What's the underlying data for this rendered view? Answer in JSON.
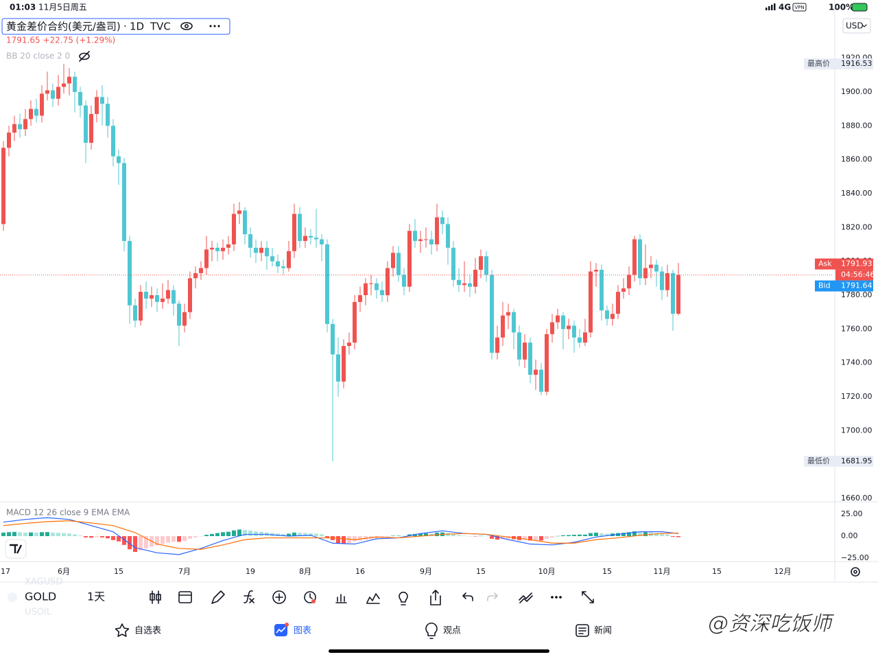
{
  "status_bar": {
    "time": "01:03",
    "date": "11月5日周五",
    "network": "4G",
    "vpn": "VPN",
    "battery": "100%"
  },
  "header": {
    "symbol_title": "黄金差价合约(美元/盎司)",
    "interval": "1D",
    "exchange": "TVC",
    "quote": "1791.65 +22.75 (+1.29%)",
    "indicator": "BB 20 close 2 0",
    "currency": "USD"
  },
  "chart_data": [
    {
      "type": "candlestick",
      "up_color": "#ef5350",
      "down_color": "#4fc7d2",
      "open": [
        1822,
        1867,
        1876,
        1881,
        1878,
        1884,
        1890,
        1886,
        1899,
        1901,
        1896,
        1903,
        1905,
        1909,
        1900,
        1892,
        1870,
        1887,
        1897,
        1893,
        1880,
        1862,
        1858,
        1812,
        1774,
        1765,
        1782,
        1778,
        1780,
        1776,
        1778,
        1783,
        1775,
        1762,
        1770,
        1790,
        1793,
        1796,
        1807,
        1808,
        1806,
        1808,
        1810,
        1828,
        1830,
        1816,
        1808,
        1805,
        1808,
        1803,
        1800,
        1797,
        1796,
        1806,
        1828,
        1812,
        1815,
        1814,
        1813,
        1810,
        1763,
        1745,
        1729,
        1750,
        1752,
        1776,
        1780,
        1787,
        1787,
        1783,
        1780,
        1796,
        1805,
        1792,
        1785,
        1818,
        1812,
        1813,
        1813,
        1810,
        1826,
        1822,
        1808,
        1789,
        1786,
        1787,
        1785,
        1795,
        1803,
        1792,
        1746,
        1755,
        1768,
        1770,
        1758,
        1742,
        1752,
        1733,
        1736,
        1723,
        1757,
        1764,
        1768,
        1760,
        1762,
        1755,
        1752,
        1758,
        1794,
        1795,
        1771,
        1766,
        1769,
        1782,
        1784,
        1792,
        1813,
        1790,
        1796,
        1798,
        1794,
        1783,
        1793,
        1769
      ],
      "high": [
        1871,
        1880,
        1886,
        1887,
        1890,
        1895,
        1896,
        1904,
        1912,
        1905,
        1910,
        1916.53,
        1914,
        1912,
        1903,
        1895,
        1892,
        1901,
        1904,
        1897,
        1884,
        1866,
        1861,
        1815,
        1778,
        1786,
        1788,
        1785,
        1784,
        1787,
        1789,
        1786,
        1777,
        1775,
        1794,
        1797,
        1800,
        1815,
        1812,
        1811,
        1813,
        1815,
        1834,
        1835,
        1832,
        1820,
        1813,
        1812,
        1812,
        1808,
        1804,
        1801,
        1812,
        1834,
        1832,
        1820,
        1819,
        1831,
        1816,
        1813,
        1766,
        1755,
        1754,
        1758,
        1780,
        1785,
        1790,
        1792,
        1790,
        1788,
        1800,
        1809,
        1809,
        1796,
        1822,
        1825,
        1818,
        1820,
        1818,
        1834,
        1830,
        1826,
        1812,
        1796,
        1800,
        1792,
        1802,
        1807,
        1806,
        1795,
        1762,
        1776,
        1775,
        1772,
        1762,
        1757,
        1755,
        1742,
        1740,
        1760,
        1769,
        1772,
        1770,
        1766,
        1765,
        1760,
        1766,
        1800,
        1799,
        1798,
        1774,
        1775,
        1786,
        1790,
        1797,
        1815,
        1816,
        1810,
        1803,
        1801,
        1797,
        1798,
        1795,
        1799
      ],
      "low": [
        1818,
        1862,
        1871,
        1873,
        1874,
        1880,
        1882,
        1882,
        1895,
        1891,
        1892,
        1899,
        1898,
        1888,
        1885,
        1858,
        1866,
        1882,
        1880,
        1873,
        1856,
        1845,
        1806,
        1763,
        1761,
        1762,
        1772,
        1773,
        1770,
        1772,
        1775,
        1768,
        1750,
        1758,
        1766,
        1784,
        1789,
        1792,
        1800,
        1800,
        1801,
        1804,
        1806,
        1822,
        1810,
        1802,
        1799,
        1800,
        1795,
        1797,
        1793,
        1792,
        1794,
        1802,
        1808,
        1808,
        1810,
        1808,
        1800,
        1758,
        1681.95,
        1720,
        1725,
        1745,
        1748,
        1770,
        1774,
        1780,
        1778,
        1776,
        1776,
        1791,
        1788,
        1780,
        1782,
        1808,
        1805,
        1808,
        1804,
        1806,
        1816,
        1798,
        1785,
        1782,
        1782,
        1779,
        1781,
        1790,
        1788,
        1742,
        1742,
        1750,
        1760,
        1748,
        1738,
        1737,
        1728,
        1724,
        1721,
        1721,
        1752,
        1760,
        1748,
        1754,
        1746,
        1749,
        1750,
        1755,
        1785,
        1765,
        1762,
        1762,
        1766,
        1778,
        1780,
        1788,
        1786,
        1786,
        1790,
        1785,
        1777,
        1779,
        1759,
        1768
      ],
      "close": [
        1867,
        1876,
        1881,
        1878,
        1884,
        1890,
        1886,
        1899,
        1901,
        1896,
        1903,
        1905,
        1909,
        1900,
        1892,
        1870,
        1887,
        1897,
        1893,
        1880,
        1862,
        1858,
        1812,
        1774,
        1765,
        1782,
        1778,
        1780,
        1776,
        1778,
        1783,
        1775,
        1762,
        1770,
        1790,
        1793,
        1796,
        1807,
        1808,
        1806,
        1808,
        1810,
        1828,
        1830,
        1816,
        1808,
        1805,
        1808,
        1803,
        1800,
        1797,
        1796,
        1806,
        1828,
        1812,
        1815,
        1814,
        1813,
        1810,
        1763,
        1745,
        1729,
        1750,
        1752,
        1776,
        1780,
        1787,
        1787,
        1783,
        1780,
        1796,
        1805,
        1792,
        1785,
        1818,
        1812,
        1813,
        1813,
        1810,
        1826,
        1822,
        1808,
        1789,
        1786,
        1787,
        1785,
        1795,
        1803,
        1792,
        1746,
        1755,
        1768,
        1770,
        1758,
        1742,
        1752,
        1733,
        1736,
        1723,
        1757,
        1764,
        1768,
        1760,
        1762,
        1755,
        1752,
        1758,
        1794,
        1795,
        1771,
        1766,
        1769,
        1782,
        1784,
        1792,
        1813,
        1790,
        1796,
        1798,
        1794,
        1783,
        1793,
        1769,
        1792
      ],
      "xlim": [
        -0.625,
        151.25
      ],
      "xticks": [
        {
          "value": 0,
          "label": "17"
        },
        {
          "value": 11,
          "label": "6月"
        },
        {
          "value": 21,
          "label": "15"
        },
        {
          "value": 33,
          "label": "7月"
        },
        {
          "value": 45,
          "label": "19"
        },
        {
          "value": 55,
          "label": "8月"
        },
        {
          "value": 65,
          "label": "16"
        },
        {
          "value": 77,
          "label": "9月"
        },
        {
          "value": 87,
          "label": "15"
        },
        {
          "value": 99,
          "label": "10月"
        },
        {
          "value": 110,
          "label": "15"
        },
        {
          "value": 120,
          "label": "11月"
        },
        {
          "value": 130,
          "label": "15"
        },
        {
          "value": 142,
          "label": "12月"
        }
      ],
      "ylim": [
        1658.4,
        1954.3
      ],
      "yticks": [
        {
          "value": 1660,
          "label": "1660.00"
        },
        {
          "value": 1680,
          "label": "1680.00"
        },
        {
          "value": 1700,
          "label": "1700.00"
        },
        {
          "value": 1720,
          "label": "1720.00"
        },
        {
          "value": 1740,
          "label": "1740.00"
        },
        {
          "value": 1760,
          "label": "1760.00"
        },
        {
          "value": 1780,
          "label": "1780.00"
        },
        {
          "value": 1800,
          "label": "1800.00"
        },
        {
          "value": 1820,
          "label": "1820.00"
        },
        {
          "value": 1840,
          "label": "1840.00"
        },
        {
          "value": 1860,
          "label": "1860.00"
        },
        {
          "value": 1880,
          "label": "1880.00"
        },
        {
          "value": 1900,
          "label": "1900.00"
        },
        {
          "value": 1920,
          "label": "1920.00"
        }
      ],
      "price_tags": [
        {
          "label": "最高价",
          "value": 1916.53
        },
        {
          "label": "最低价",
          "value": 1681.95
        }
      ],
      "ask": {
        "label": "Ask",
        "value": 1791.93
      },
      "countdown": "04:56:46",
      "bid": {
        "label": "Bid",
        "value": 1791.64
      }
    },
    {
      "type": "macd",
      "title": "MACD 12 26 close 9 EMA EMA",
      "histogram": [
        4,
        4.5,
        4.8,
        4.5,
        4,
        4.2,
        4,
        4.5,
        4.6,
        4,
        3.8,
        3.5,
        3,
        2,
        0.8,
        -1.5,
        -1.8,
        -1.2,
        -1.5,
        -2.5,
        -4.5,
        -6,
        -10,
        -15,
        -18,
        -16,
        -14,
        -12,
        -10.5,
        -9,
        -7.5,
        -6.5,
        -6.5,
        -5.5,
        -3,
        -1.5,
        -0.2,
        1.5,
        2.5,
        3.5,
        4.5,
        5,
        6.5,
        7.5,
        7,
        6.5,
        5.5,
        5,
        4.2,
        3.5,
        3,
        2.5,
        2.8,
        4,
        3.8,
        3.6,
        3.2,
        2.8,
        2.2,
        -1.5,
        -4.5,
        -8,
        -8.5,
        -8,
        -6,
        -5,
        -4,
        -3,
        -2.5,
        -2,
        -0.8,
        0.5,
        0.5,
        0.3,
        2,
        2.5,
        3,
        3.2,
        3,
        4,
        4.2,
        3.5,
        2,
        1,
        0.5,
        0,
        -0.2,
        0.3,
        0.2,
        -3,
        -4,
        -3.5,
        -3,
        -3.5,
        -4.5,
        -4,
        -5,
        -4.5,
        -5,
        -3,
        -1.5,
        0.2,
        1,
        1.2,
        1.5,
        1.8,
        1.8,
        3.5,
        4,
        3.2,
        2.8,
        3,
        3.5,
        3.8,
        4.5,
        5.5,
        4.5,
        4.5,
        4.2,
        3.5,
        2.5,
        2,
        -0.8,
        -1.2
      ],
      "histogram_colors": [
        "#22ab94",
        "#ace5dc",
        "#fccbcd",
        "#ff5252"
      ],
      "x": [
        0,
        4,
        8,
        12,
        16,
        20,
        24,
        28,
        32,
        36,
        40,
        44,
        48,
        52,
        56,
        60,
        64,
        68,
        72,
        76,
        80,
        84,
        88,
        92,
        96,
        100,
        104,
        108,
        112,
        116,
        120,
        123
      ],
      "macd_line": {
        "color": "#2962ff",
        "values": [
          16,
          19,
          21,
          19,
          12,
          5,
          -13,
          -19,
          -21,
          -14,
          -5,
          2,
          2,
          0,
          1,
          -8,
          -9,
          -3,
          -2,
          3,
          6,
          3,
          2,
          -4,
          -9,
          -10,
          -7,
          -1,
          2,
          5,
          5,
          3
        ]
      },
      "signal_line": {
        "color": "#ff6d00",
        "values": [
          12,
          14.5,
          16.5,
          17.5,
          15,
          12,
          4,
          -9,
          -14,
          -15,
          -10,
          -4,
          -2,
          -2,
          -2,
          -2,
          -4,
          -1,
          -2,
          0,
          2,
          3,
          2,
          -1,
          -4,
          -8,
          -8,
          -4,
          -2,
          1,
          3,
          3.5
        ]
      },
      "ylim": [
        -28.9,
        38.3
      ],
      "yticks": [
        {
          "value": 25,
          "label": "25.00"
        },
        {
          "value": 0,
          "label": "0.00"
        },
        {
          "value": -25,
          "label": "−25.00"
        }
      ]
    }
  ],
  "toolbar": {
    "symbol": "GOLD",
    "interval": "1天",
    "ghost_symbols": [
      "XAGUSD",
      "USOIL"
    ]
  },
  "tabs": [
    "自选表",
    "图表",
    "观点",
    "新闻"
  ],
  "watermark": "@资深吃饭师"
}
